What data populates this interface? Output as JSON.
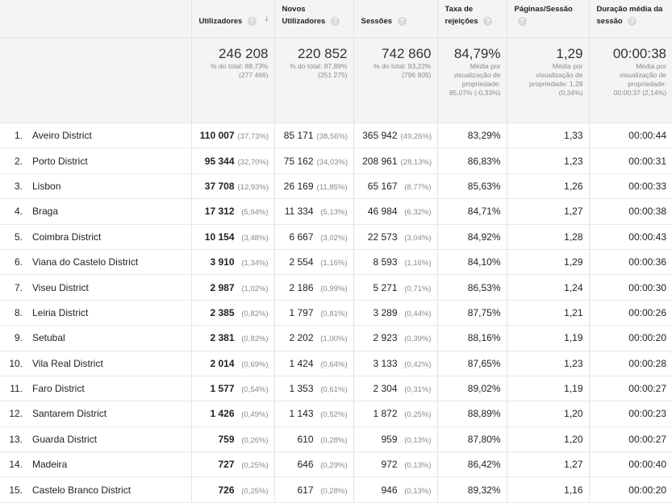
{
  "headers": [
    {
      "label": "Utilizadores"
    },
    {
      "label": "Novos Utilizadores"
    },
    {
      "label": "Sessões"
    },
    {
      "label": "Taxa de rejeições"
    },
    {
      "label": "Páginas/Sessão"
    },
    {
      "label": "Duração média da sessão"
    }
  ],
  "totals": [
    {
      "value": "246 208",
      "l1": "% do total: 88,73%",
      "l2": "(277 466)",
      "l3": "",
      "l4": "",
      "l5": ""
    },
    {
      "value": "220 852",
      "l1": "% do total: 87,89%",
      "l2": "(251 275)",
      "l3": "",
      "l4": "",
      "l5": ""
    },
    {
      "value": "742 860",
      "l1": "% do total: 93,22%",
      "l2": "(796 905)",
      "l3": "",
      "l4": "",
      "l5": ""
    },
    {
      "value": "84,79%",
      "l1": "Média por",
      "l2": "visualização de",
      "l3": "propriedade:",
      "l4": "85,07% (-0,33%)",
      "l5": ""
    },
    {
      "value": "1,29",
      "l1": "Média por",
      "l2": "visualização de",
      "l3": "propriedade: 1,28",
      "l4": "(0,34%)",
      "l5": ""
    },
    {
      "value": "00:00:38",
      "l1": "Média por",
      "l2": "visualização de",
      "l3": "propriedade:",
      "l4": "00:00:37 (2,14%)",
      "l5": ""
    }
  ],
  "rows": [
    {
      "idx": "1.",
      "region": "Aveiro District",
      "users": "110 007",
      "users_pct": "(37,73%)",
      "new": "85 171",
      "new_pct": "(38,56%)",
      "sessions": "365 942",
      "sessions_pct": "(49,26%)",
      "bounce": "83,29%",
      "pages": "1,33",
      "duration": "00:00:44"
    },
    {
      "idx": "2.",
      "region": "Porto District",
      "users": "95 344",
      "users_pct": "(32,70%)",
      "new": "75 162",
      "new_pct": "(34,03%)",
      "sessions": "208 961",
      "sessions_pct": "(28,13%)",
      "bounce": "86,83%",
      "pages": "1,23",
      "duration": "00:00:31"
    },
    {
      "idx": "3.",
      "region": "Lisbon",
      "users": "37 708",
      "users_pct": "(12,93%)",
      "new": "26 169",
      "new_pct": "(11,85%)",
      "sessions": "65 167",
      "sessions_pct": "(8,77%)",
      "bounce": "85,63%",
      "pages": "1,26",
      "duration": "00:00:33"
    },
    {
      "idx": "4.",
      "region": "Braga",
      "users": "17 312",
      "users_pct": "(5,94%)",
      "new": "11 334",
      "new_pct": "(5,13%)",
      "sessions": "46 984",
      "sessions_pct": "(6,32%)",
      "bounce": "84,71%",
      "pages": "1,27",
      "duration": "00:00:38"
    },
    {
      "idx": "5.",
      "region": "Coimbra District",
      "users": "10 154",
      "users_pct": "(3,48%)",
      "new": "6 667",
      "new_pct": "(3,02%)",
      "sessions": "22 573",
      "sessions_pct": "(3,04%)",
      "bounce": "84,92%",
      "pages": "1,28",
      "duration": "00:00:43"
    },
    {
      "idx": "6.",
      "region": "Viana do Castelo District",
      "users": "3 910",
      "users_pct": "(1,34%)",
      "new": "2 554",
      "new_pct": "(1,16%)",
      "sessions": "8 593",
      "sessions_pct": "(1,16%)",
      "bounce": "84,10%",
      "pages": "1,29",
      "duration": "00:00:36"
    },
    {
      "idx": "7.",
      "region": "Viseu District",
      "users": "2 987",
      "users_pct": "(1,02%)",
      "new": "2 186",
      "new_pct": "(0,99%)",
      "sessions": "5 271",
      "sessions_pct": "(0,71%)",
      "bounce": "86,53%",
      "pages": "1,24",
      "duration": "00:00:30"
    },
    {
      "idx": "8.",
      "region": "Leiria District",
      "users": "2 385",
      "users_pct": "(0,82%)",
      "new": "1 797",
      "new_pct": "(0,81%)",
      "sessions": "3 289",
      "sessions_pct": "(0,44%)",
      "bounce": "87,75%",
      "pages": "1,21",
      "duration": "00:00:26"
    },
    {
      "idx": "9.",
      "region": "Setubal",
      "users": "2 381",
      "users_pct": "(0,82%)",
      "new": "2 202",
      "new_pct": "(1,00%)",
      "sessions": "2 923",
      "sessions_pct": "(0,39%)",
      "bounce": "88,16%",
      "pages": "1,19",
      "duration": "00:00:20"
    },
    {
      "idx": "10.",
      "region": "Vila Real District",
      "users": "2 014",
      "users_pct": "(0,69%)",
      "new": "1 424",
      "new_pct": "(0,64%)",
      "sessions": "3 133",
      "sessions_pct": "(0,42%)",
      "bounce": "87,65%",
      "pages": "1,23",
      "duration": "00:00:28"
    },
    {
      "idx": "11.",
      "region": "Faro District",
      "users": "1 577",
      "users_pct": "(0,54%)",
      "new": "1 353",
      "new_pct": "(0,61%)",
      "sessions": "2 304",
      "sessions_pct": "(0,31%)",
      "bounce": "89,02%",
      "pages": "1,19",
      "duration": "00:00:27"
    },
    {
      "idx": "12.",
      "region": "Santarem District",
      "users": "1 426",
      "users_pct": "(0,49%)",
      "new": "1 143",
      "new_pct": "(0,52%)",
      "sessions": "1 872",
      "sessions_pct": "(0,25%)",
      "bounce": "88,89%",
      "pages": "1,20",
      "duration": "00:00:23"
    },
    {
      "idx": "13.",
      "region": "Guarda District",
      "users": "759",
      "users_pct": "(0,26%)",
      "new": "610",
      "new_pct": "(0,28%)",
      "sessions": "959",
      "sessions_pct": "(0,13%)",
      "bounce": "87,80%",
      "pages": "1,20",
      "duration": "00:00:27"
    },
    {
      "idx": "14.",
      "region": "Madeira",
      "users": "727",
      "users_pct": "(0,25%)",
      "new": "646",
      "new_pct": "(0,29%)",
      "sessions": "972",
      "sessions_pct": "(0,13%)",
      "bounce": "86,42%",
      "pages": "1,27",
      "duration": "00:00:40"
    },
    {
      "idx": "15.",
      "region": "Castelo Branco District",
      "users": "726",
      "users_pct": "(0,25%)",
      "new": "617",
      "new_pct": "(0,28%)",
      "sessions": "946",
      "sessions_pct": "(0,13%)",
      "bounce": "89,32%",
      "pages": "1,16",
      "duration": "00:00:20"
    }
  ],
  "icons": {
    "help": "?",
    "sort": "↓"
  }
}
